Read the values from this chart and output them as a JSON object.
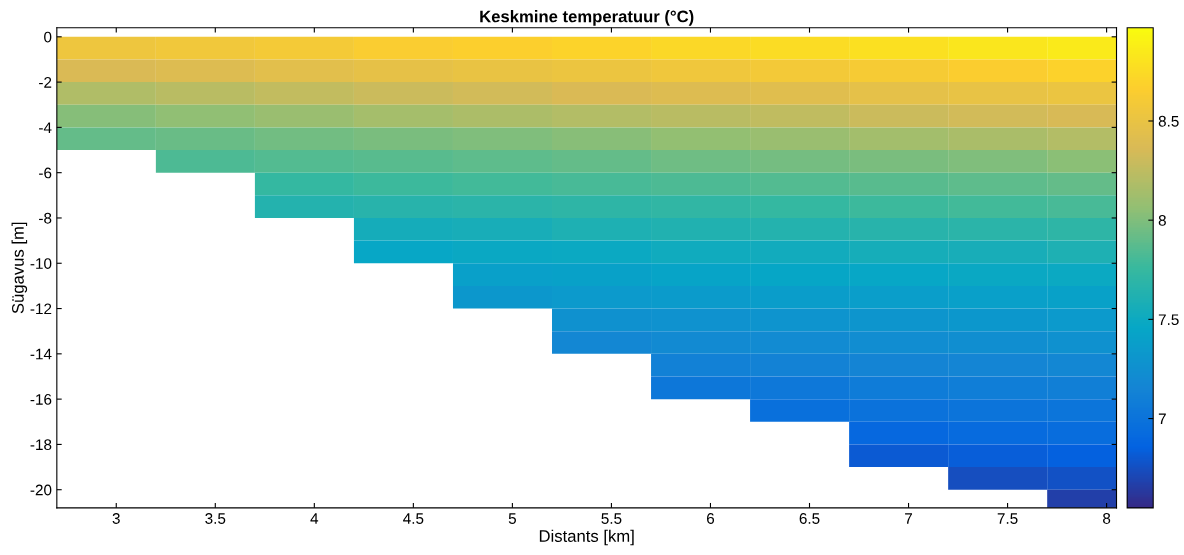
{
  "chart_data": {
    "type": "heatmap",
    "title": "Keskmine temperatuur (°C)",
    "xlabel": "Distants [km]",
    "ylabel": "Sügavus [m]",
    "x": [
      2.95,
      3.45,
      3.95,
      4.45,
      4.95,
      5.45,
      5.95,
      6.45,
      6.95,
      7.45,
      7.95
    ],
    "y": [
      -0.5,
      -1.5,
      -2.5,
      -3.5,
      -4.5,
      -5.5,
      -6.5,
      -7.5,
      -8.5,
      -9.5,
      -10.5,
      -11.5,
      -12.5,
      -13.5,
      -14.5,
      -15.5,
      -16.5,
      -17.5,
      -18.5,
      -19.5,
      -20.5
    ],
    "cells": [
      [
        8.54,
        8.57,
        8.6,
        8.64,
        8.67,
        8.7,
        8.73,
        8.76,
        8.79,
        8.82,
        8.85
      ],
      [
        8.37,
        8.4,
        8.44,
        8.47,
        8.5,
        8.53,
        8.56,
        8.59,
        8.62,
        8.65,
        8.69
      ],
      [
        8.19,
        8.23,
        8.27,
        8.3,
        8.33,
        8.37,
        8.4,
        8.43,
        8.46,
        8.49,
        8.52
      ],
      [
        8.02,
        8.06,
        8.1,
        8.14,
        8.17,
        8.2,
        8.23,
        8.26,
        8.3,
        8.33,
        8.36
      ],
      [
        7.91,
        7.93,
        7.95,
        7.98,
        8.0,
        8.03,
        8.07,
        8.1,
        8.13,
        8.16,
        8.2
      ],
      [
        null,
        7.83,
        7.85,
        7.87,
        7.89,
        7.91,
        7.94,
        7.96,
        7.98,
        8.0,
        8.04
      ],
      [
        null,
        null,
        7.74,
        7.77,
        7.79,
        7.81,
        7.83,
        7.85,
        7.87,
        7.89,
        7.91
      ],
      [
        null,
        null,
        7.64,
        7.66,
        7.68,
        7.7,
        7.72,
        7.74,
        7.77,
        7.79,
        7.81
      ],
      [
        null,
        null,
        null,
        7.55,
        7.57,
        7.6,
        7.62,
        7.64,
        7.66,
        7.68,
        7.7
      ],
      [
        null,
        null,
        null,
        7.46,
        7.48,
        7.49,
        7.52,
        7.53,
        7.56,
        7.57,
        7.6
      ],
      [
        null,
        null,
        null,
        null,
        7.4,
        7.41,
        7.43,
        7.45,
        7.46,
        7.48,
        7.49
      ],
      [
        null,
        null,
        null,
        null,
        7.32,
        7.34,
        7.35,
        7.37,
        7.38,
        7.4,
        7.41
      ],
      [
        null,
        null,
        null,
        null,
        null,
        7.26,
        7.27,
        7.29,
        7.3,
        7.32,
        7.34
      ],
      [
        null,
        null,
        null,
        null,
        null,
        7.18,
        7.2,
        7.21,
        7.23,
        7.24,
        7.26
      ],
      [
        null,
        null,
        null,
        null,
        null,
        null,
        7.12,
        7.13,
        7.15,
        7.16,
        7.18
      ],
      [
        null,
        null,
        null,
        null,
        null,
        null,
        7.04,
        7.05,
        7.07,
        7.09,
        7.1
      ],
      [
        null,
        null,
        null,
        null,
        null,
        null,
        null,
        6.97,
        6.99,
        7.01,
        7.02
      ],
      [
        null,
        null,
        null,
        null,
        null,
        null,
        null,
        null,
        6.9,
        6.92,
        6.94
      ],
      [
        null,
        null,
        null,
        null,
        null,
        null,
        null,
        null,
        6.81,
        6.83,
        6.85
      ],
      [
        null,
        null,
        null,
        null,
        null,
        null,
        null,
        null,
        null,
        6.74,
        6.76
      ],
      [
        null,
        null,
        null,
        null,
        null,
        null,
        null,
        null,
        null,
        null,
        6.67
      ]
    ],
    "clim": [
      6.55,
      8.97
    ],
    "cticks": [
      7,
      7.5,
      8,
      8.5
    ],
    "xlim": [
      2.7,
      8.05
    ],
    "ylim": [
      -20.8,
      0.4
    ],
    "xticks": [
      3,
      3.5,
      4,
      4.5,
      5,
      5.5,
      6,
      6.5,
      7,
      7.5,
      8
    ],
    "yticks": [
      0,
      -2,
      -4,
      -6,
      -8,
      -10,
      -12,
      -14,
      -16,
      -18,
      -20
    ]
  }
}
